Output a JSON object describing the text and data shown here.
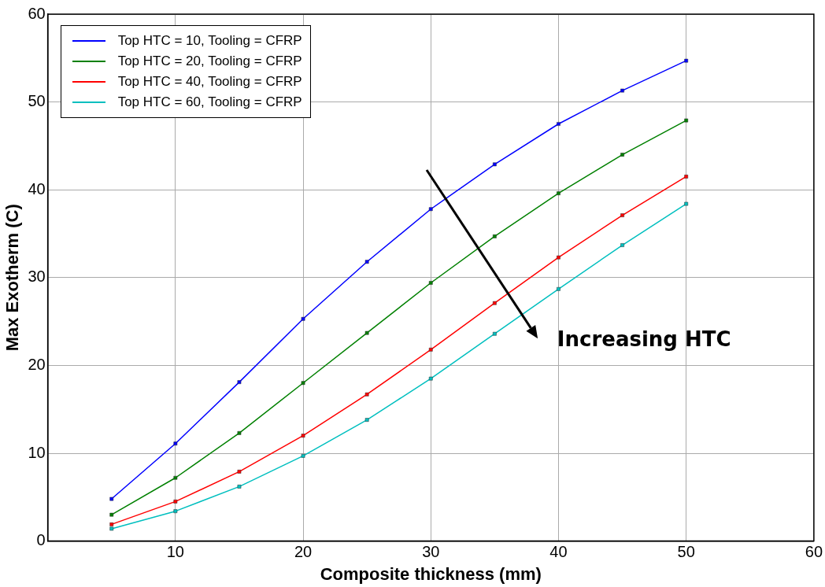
{
  "chart_data": {
    "type": "line",
    "xlabel": "Composite thickness (mm)",
    "ylabel": "Max Exotherm (C)",
    "x": [
      5,
      10,
      15,
      20,
      25,
      30,
      35,
      40,
      45,
      50
    ],
    "series": [
      {
        "name": "Top HTC = 10, Tooling = CFRP",
        "color": "#0000ff",
        "values": [
          4.8,
          11.1,
          18.1,
          25.3,
          31.8,
          37.8,
          42.9,
          47.5,
          51.3,
          54.7
        ]
      },
      {
        "name": "Top HTC = 20, Tooling = CFRP",
        "color": "#008000",
        "values": [
          3.0,
          7.2,
          12.3,
          18.0,
          23.7,
          29.4,
          34.7,
          39.6,
          44.0,
          47.9
        ]
      },
      {
        "name": "Top HTC = 40, Tooling = CFRP",
        "color": "#ff0000",
        "values": [
          1.9,
          4.5,
          7.9,
          12.0,
          16.7,
          21.8,
          27.1,
          32.3,
          37.1,
          41.5
        ]
      },
      {
        "name": "Top HTC = 60, Tooling = CFRP",
        "color": "#00bfbf",
        "values": [
          1.4,
          3.4,
          6.2,
          9.7,
          13.8,
          18.5,
          23.6,
          28.7,
          33.7,
          38.4
        ]
      }
    ],
    "xlim": [
      0,
      60
    ],
    "xticks": [
      {
        "value": 0,
        "label": null
      },
      10,
      20,
      30,
      40,
      50,
      60
    ],
    "ylim": [
      0,
      60
    ],
    "yticks": [
      0,
      10,
      20,
      30,
      40,
      50,
      60
    ],
    "grid": true,
    "legend": "top left",
    "marker": "square",
    "line_style": "solid",
    "annotations": [
      "Increasing HTC"
    ]
  }
}
